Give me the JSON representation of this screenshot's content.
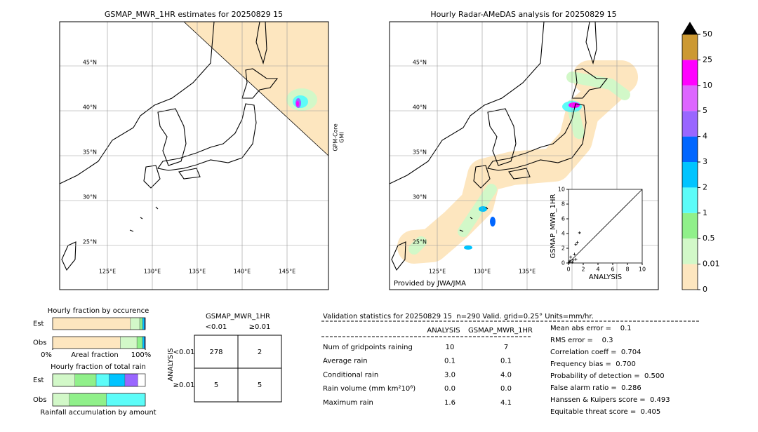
{
  "maps": [
    {
      "title": "GSMAP_MWR_1HR estimates for 20250829 15",
      "lat_labels": [
        "45°N",
        "40°N",
        "35°N",
        "30°N",
        "25°N"
      ],
      "lon_labels": [
        "125°E",
        "130°E",
        "135°E",
        "140°E",
        "145°E"
      ],
      "side_label": [
        "GPM-Core",
        "GMI"
      ]
    },
    {
      "title": "Hourly Radar-AMeDAS analysis for 20250829 15",
      "lat_labels": [
        "45°N",
        "40°N",
        "35°N",
        "30°N",
        "25°N"
      ],
      "lon_labels": [
        "125°E",
        "130°E",
        "135°E"
      ],
      "credit": "Provided by JWA/JMA"
    }
  ],
  "chart_data": [
    {
      "type": "colorbar",
      "ticks": [
        0,
        0.01,
        0.5,
        1,
        2,
        3,
        4,
        5,
        10,
        25,
        50
      ],
      "colors": [
        "#fde6bf",
        "#d2f8c8",
        "#90f08a",
        "#5cfcf8",
        "#00c4ff",
        "#0066ff",
        "#9966ff",
        "#dd66ff",
        "#ff00ff",
        "#cc9933"
      ],
      "extend_color": "#000000"
    },
    {
      "type": "scatter",
      "xlabel": "ANALYSIS",
      "ylabel": "GSMAP_MWR_1HR",
      "xlim": [
        0,
        10
      ],
      "ylim": [
        0,
        10
      ],
      "xticks": [
        0,
        2,
        4,
        6,
        8,
        10
      ],
      "yticks": [
        0,
        2,
        4,
        6,
        8,
        10
      ],
      "x": [
        0.1,
        0.2,
        0.3,
        0.5,
        0.6,
        0.8,
        1.0,
        1.0,
        1.2,
        1.5
      ],
      "y": [
        0.1,
        0.3,
        0.8,
        0.1,
        0.4,
        1.2,
        0.5,
        2.5,
        2.8,
        4.1
      ],
      "color": "#000000"
    },
    {
      "type": "hbar-stacked",
      "title": "Hourly fraction by occurence",
      "xlabel": "Areal fraction",
      "categories": [
        "Est",
        "Obs"
      ],
      "xlim": [
        0,
        100
      ],
      "xticks": [
        {
          "value": 0,
          "label": "0%"
        },
        {
          "value": 100,
          "label": "100%"
        }
      ],
      "series": [
        {
          "color": "#fde6bf",
          "values": [
            84,
            73
          ]
        },
        {
          "color": "#d2f8c8",
          "values": [
            10,
            18
          ]
        },
        {
          "color": "#90f08a",
          "values": [
            3,
            6
          ]
        },
        {
          "color": "#00c4ff",
          "values": [
            2,
            2
          ]
        },
        {
          "color": "#0033aa",
          "values": [
            1,
            1
          ]
        }
      ]
    },
    {
      "type": "hbar-stacked",
      "title": "Hourly fraction of total rain",
      "xlabel": "Rainfall accumulation by amount",
      "categories": [
        "Est",
        "Obs"
      ],
      "xlim": [
        0,
        100
      ],
      "series": [
        {
          "color": "#d2f8c8",
          "values": [
            24,
            18
          ]
        },
        {
          "color": "#90f08a",
          "values": [
            23,
            40
          ]
        },
        {
          "color": "#5cfcf8",
          "values": [
            14,
            42
          ]
        },
        {
          "color": "#00c4ff",
          "values": [
            17,
            0
          ]
        },
        {
          "color": "#9966ff",
          "values": [
            14,
            0
          ]
        }
      ]
    }
  ],
  "contingency": {
    "header": "GSMAP_MWR_1HR",
    "columns": [
      "<0.01",
      "≥0.01"
    ],
    "row_title": "ANALYSIS",
    "rows": [
      "<0.01",
      "≥0.01"
    ],
    "cells": [
      [
        "278",
        "2"
      ],
      [
        "5",
        "5"
      ]
    ]
  },
  "stats": {
    "title": "Validation statistics for 20250829 15  n=290 Valid. grid=0.25° Units=mm/hr.",
    "columns": [
      "ANALYSIS",
      "GSMAP_MWR_1HR"
    ],
    "rows": [
      [
        "Num of gridpoints raining",
        "10",
        "7"
      ],
      [
        "Average rain",
        "0.1",
        "0.1"
      ],
      [
        "Conditional rain",
        "3.0",
        "4.0"
      ],
      [
        "Rain volume (mm km²10⁶)",
        "0.0",
        "0.0"
      ],
      [
        "Maximum rain",
        "1.6",
        "4.1"
      ]
    ],
    "scores": [
      "Mean abs error =    0.1",
      "RMS error =    0.3",
      "Correlation coeff =  0.704",
      "Frequency bias =  0.700",
      "Probability of detection =  0.500",
      "False alarm ratio =  0.286",
      "Hanssen & Kuipers score =  0.493",
      "Equitable threat score =  0.405"
    ]
  }
}
